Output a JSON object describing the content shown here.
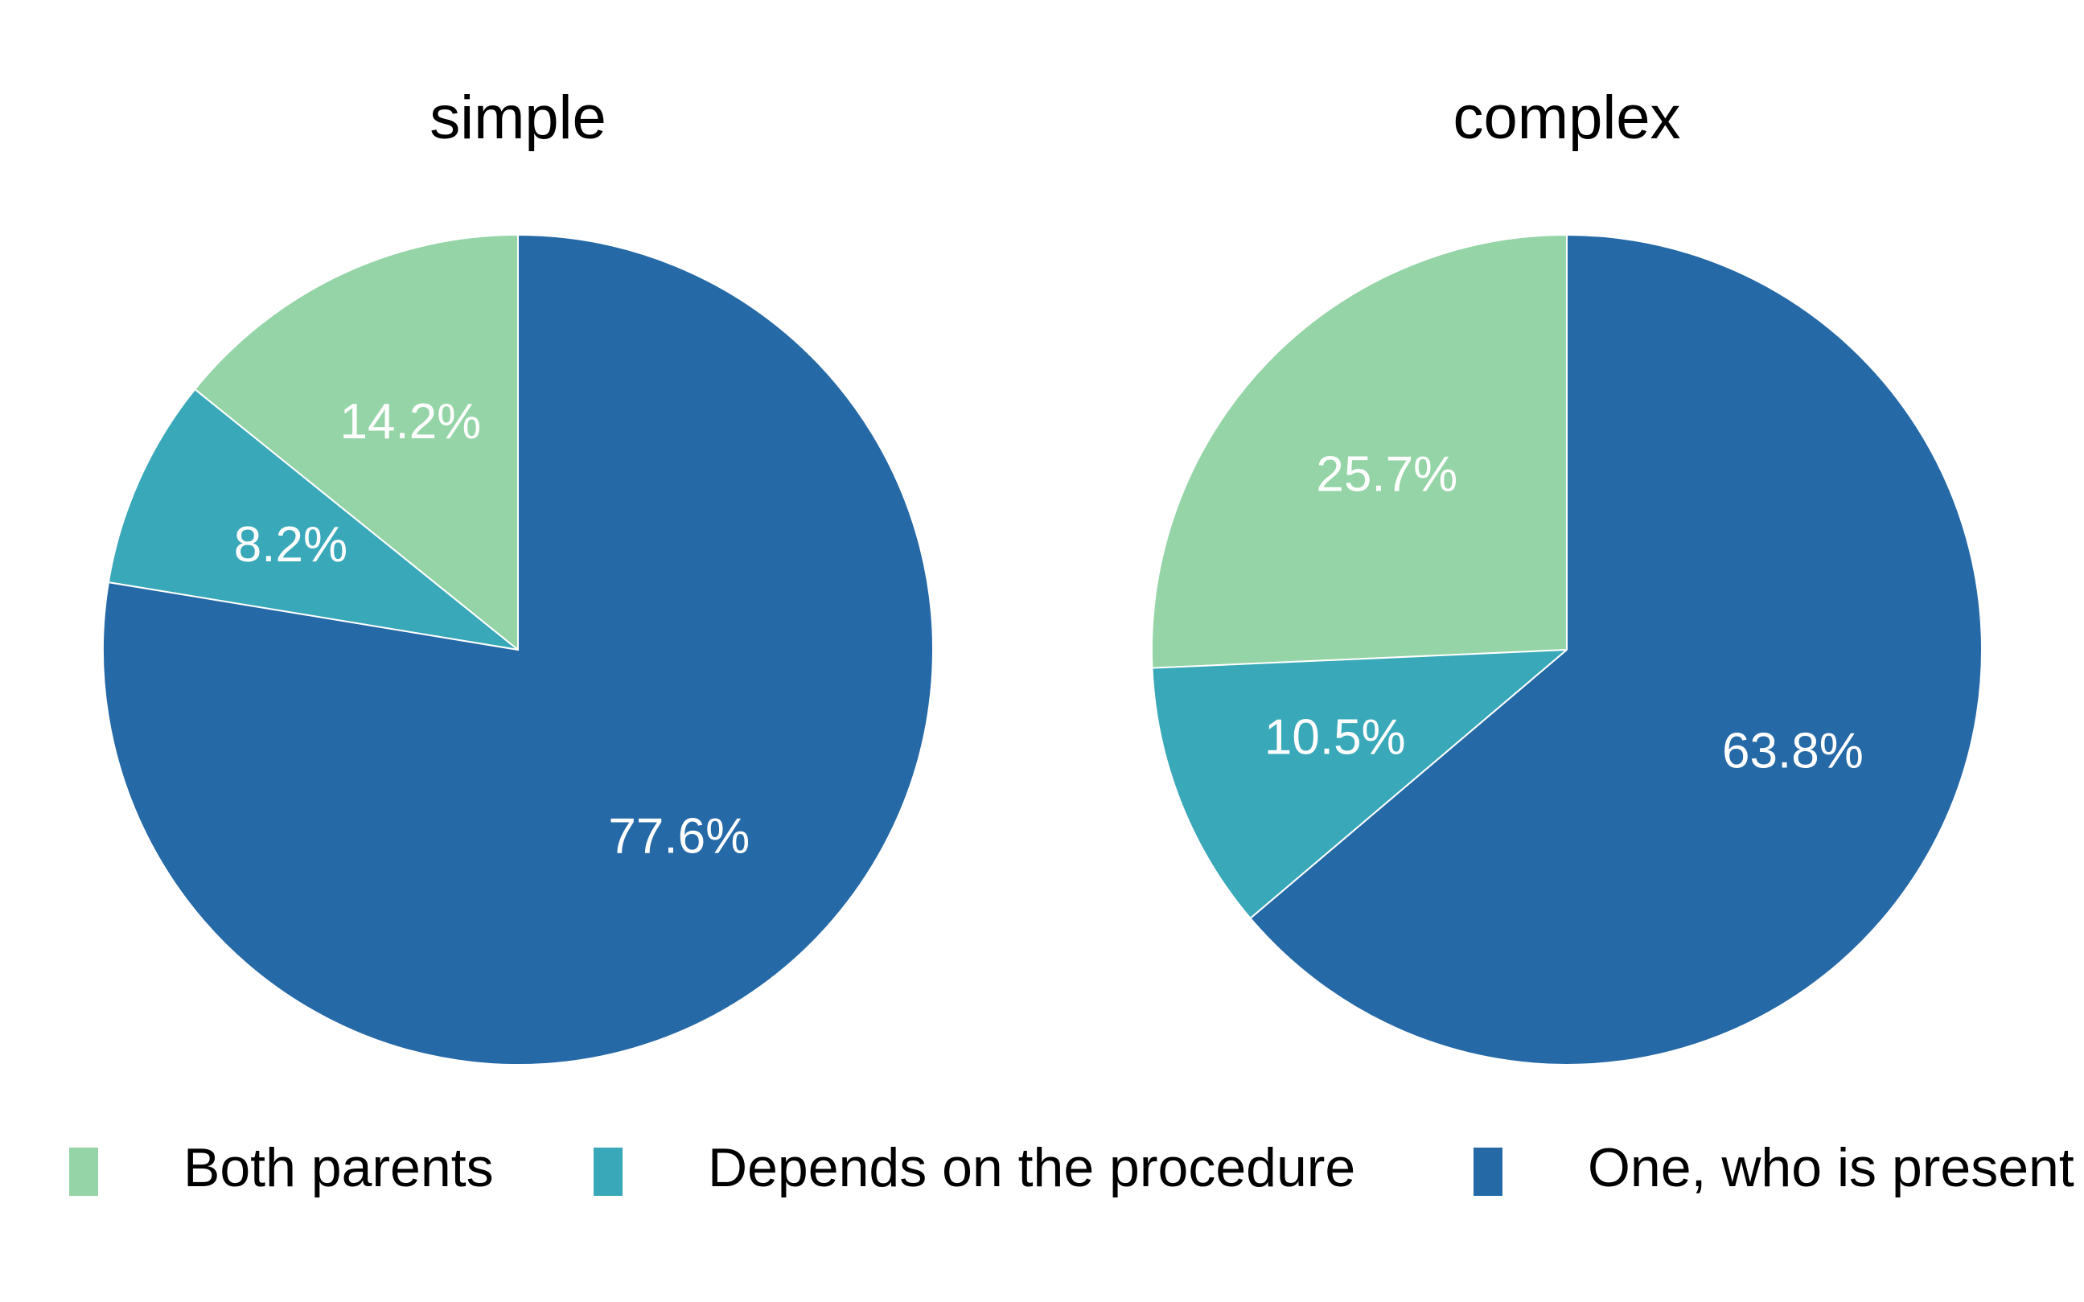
{
  "chart_data": {
    "type": "pie",
    "series_labels": [
      "Both parents",
      "Depends on the procedure",
      "One, who is present"
    ],
    "colors": [
      "#94d4a6",
      "#39a8b8",
      "#2569a6"
    ],
    "panels": [
      {
        "title": "simple",
        "values": [
          14.2,
          8.2,
          77.6
        ],
        "labels": [
          "14.2%",
          "8.2%",
          "77.6%"
        ]
      },
      {
        "title": "complex",
        "values": [
          25.7,
          10.5,
          63.8
        ],
        "labels": [
          "25.7%",
          "10.5%",
          "63.8%"
        ]
      }
    ],
    "legend": {
      "position": "bottom",
      "items": [
        "Both parents",
        "Depends on the procedure",
        "One, who is present"
      ]
    }
  }
}
